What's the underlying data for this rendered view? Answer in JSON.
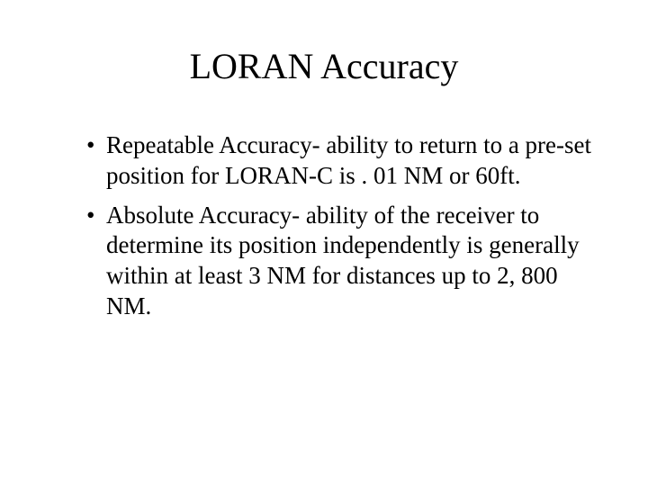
{
  "slide": {
    "title": "LORAN Accuracy",
    "title_fontsize": 40,
    "body_fontsize": 27,
    "font_family": "Times New Roman",
    "text_color": "#000000",
    "background_color": "#ffffff",
    "bullets": [
      "Repeatable Accuracy- ability to return to a pre-set position for LORAN-C is . 01 NM or 60ft.",
      "Absolute Accuracy- ability of the receiver to determine its position independently is generally within at least 3 NM for distances up to 2, 800 NM."
    ]
  }
}
